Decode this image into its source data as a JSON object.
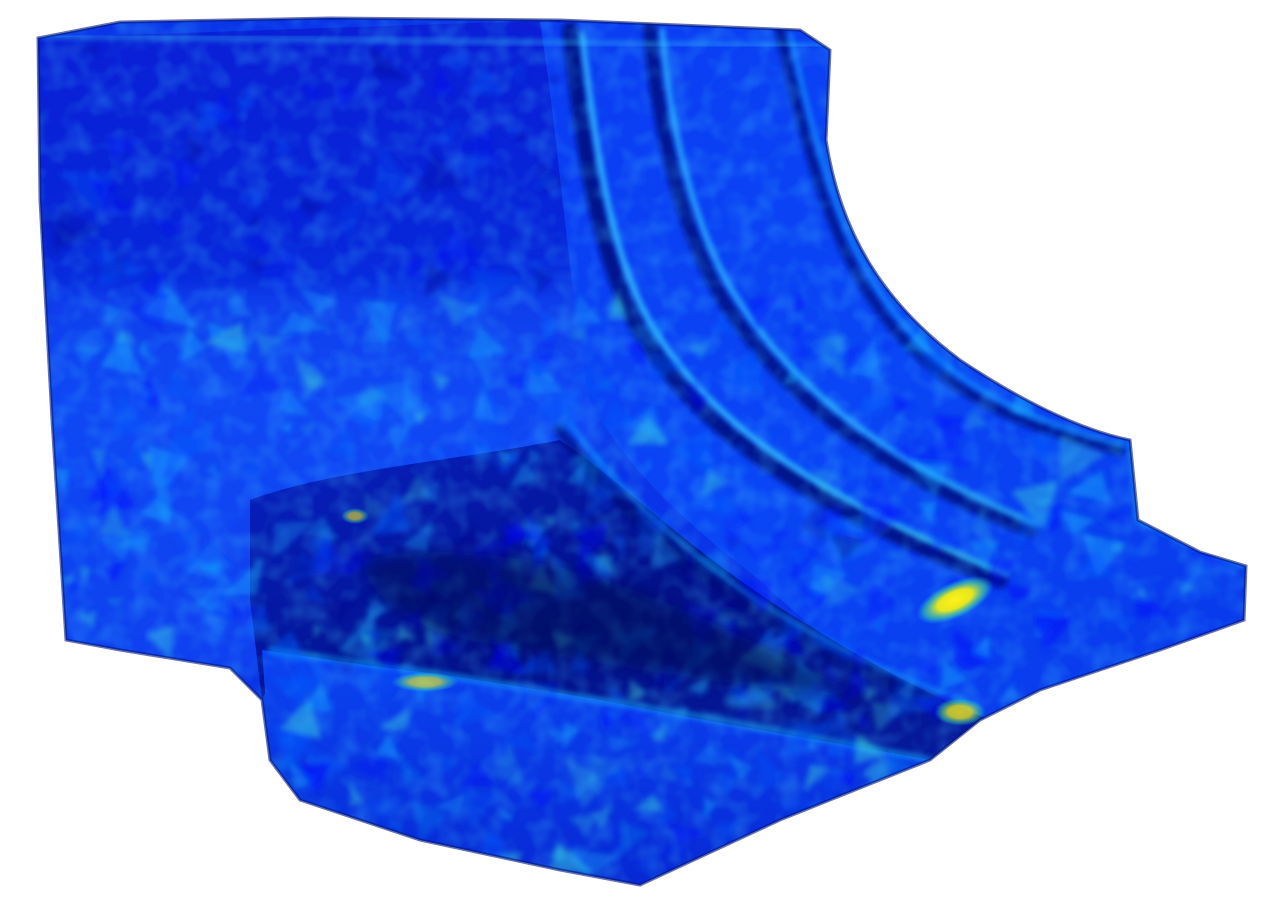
{
  "render": {
    "background_color": "#ffffff",
    "colormap": [
      "#00008b",
      "#0000ff",
      "#0a5cff",
      "#19b4ff",
      "#3ee6d8",
      "#e6e61e"
    ],
    "dominant_color": "#0a2ee6",
    "highlight_color": "#f0e81a",
    "shading": "smooth",
    "mesh": "triangulated"
  }
}
